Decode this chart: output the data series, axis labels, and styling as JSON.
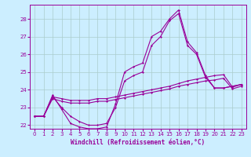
{
  "xlabel": "Windchill (Refroidissement éolien,°C)",
  "bg_color": "#cceeff",
  "grid_color": "#aacccc",
  "line_color": "#990099",
  "xlim": [
    -0.5,
    23.5
  ],
  "ylim": [
    21.8,
    28.8
  ],
  "x_ticks": [
    0,
    1,
    2,
    3,
    4,
    5,
    6,
    7,
    8,
    9,
    10,
    11,
    12,
    13,
    14,
    15,
    16,
    17,
    18,
    19,
    20,
    21,
    22,
    23
  ],
  "y_ticks": [
    22,
    23,
    24,
    25,
    26,
    27,
    28
  ],
  "line1_y": [
    22.5,
    22.5,
    23.7,
    22.9,
    22.1,
    21.9,
    21.8,
    21.8,
    21.9,
    23.2,
    25.0,
    25.3,
    25.5,
    27.0,
    27.3,
    28.0,
    28.5,
    26.7,
    26.1,
    24.8,
    24.1,
    24.1,
    24.2,
    24.3
  ],
  "line2_y": [
    22.5,
    22.5,
    23.6,
    23.0,
    22.5,
    22.2,
    22.0,
    22.0,
    22.1,
    23.0,
    24.5,
    24.8,
    25.0,
    26.5,
    27.0,
    27.9,
    28.3,
    26.5,
    26.0,
    24.7,
    24.1,
    24.1,
    24.2,
    24.3
  ],
  "line3_y": [
    22.5,
    22.5,
    23.6,
    23.5,
    23.4,
    23.4,
    23.4,
    23.5,
    23.5,
    23.6,
    23.7,
    23.8,
    23.9,
    24.0,
    24.1,
    24.2,
    24.35,
    24.5,
    24.6,
    24.7,
    24.8,
    24.85,
    24.15,
    24.3
  ],
  "line4_y": [
    22.5,
    22.5,
    23.5,
    23.35,
    23.25,
    23.25,
    23.25,
    23.35,
    23.35,
    23.45,
    23.55,
    23.65,
    23.75,
    23.85,
    23.95,
    24.05,
    24.2,
    24.3,
    24.4,
    24.5,
    24.55,
    24.65,
    24.05,
    24.2
  ]
}
